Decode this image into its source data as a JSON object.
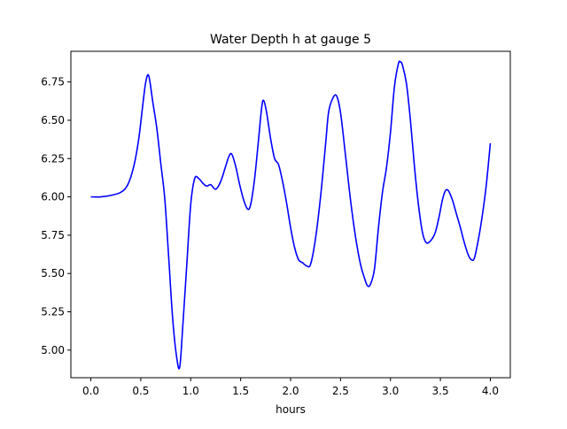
{
  "chart_data": {
    "type": "line",
    "title": "Water Depth h at gauge 5",
    "xlabel": "hours",
    "ylabel": "",
    "xlim": [
      -0.2,
      4.2
    ],
    "ylim": [
      4.82,
      6.95
    ],
    "grid": false,
    "legend": "none",
    "xticks": [
      0.0,
      0.5,
      1.0,
      1.5,
      2.0,
      2.5,
      3.0,
      3.5,
      4.0
    ],
    "xtick_labels": [
      "0.0",
      "0.5",
      "1.0",
      "1.5",
      "2.0",
      "2.5",
      "3.0",
      "3.5",
      "4.0"
    ],
    "yticks": [
      5.0,
      5.25,
      5.5,
      5.75,
      6.0,
      6.25,
      6.5,
      6.75
    ],
    "ytick_labels": [
      "5.00",
      "5.25",
      "5.50",
      "5.75",
      "6.00",
      "6.25",
      "6.50",
      "6.75"
    ],
    "series": [
      {
        "color": "#0000ff",
        "x": [
          0.0,
          0.1,
          0.2,
          0.3,
          0.37,
          0.43,
          0.48,
          0.52,
          0.55,
          0.58,
          0.62,
          0.66,
          0.7,
          0.74,
          0.78,
          0.82,
          0.86,
          0.89,
          0.92,
          0.96,
          1.0,
          1.04,
          1.08,
          1.12,
          1.16,
          1.2,
          1.25,
          1.3,
          1.35,
          1.38,
          1.41,
          1.45,
          1.49,
          1.53,
          1.57,
          1.6,
          1.64,
          1.68,
          1.71,
          1.73,
          1.76,
          1.8,
          1.84,
          1.88,
          1.92,
          1.96,
          2.0,
          2.04,
          2.08,
          2.12,
          2.16,
          2.2,
          2.25,
          2.3,
          2.35,
          2.38,
          2.42,
          2.46,
          2.5,
          2.55,
          2.6,
          2.65,
          2.7,
          2.74,
          2.77,
          2.8,
          2.84,
          2.88,
          2.92,
          2.96,
          3.0,
          3.04,
          3.08,
          3.1,
          3.12,
          3.16,
          3.2,
          3.24,
          3.28,
          3.32,
          3.36,
          3.41,
          3.45,
          3.49,
          3.52,
          3.55,
          3.58,
          3.62,
          3.66,
          3.7,
          3.74,
          3.78,
          3.81,
          3.84,
          3.88,
          3.92,
          3.96,
          4.0
        ],
        "y": [
          6.0,
          6.0,
          6.01,
          6.03,
          6.08,
          6.2,
          6.38,
          6.6,
          6.75,
          6.79,
          6.62,
          6.45,
          6.22,
          5.99,
          5.6,
          5.2,
          4.95,
          4.89,
          5.15,
          5.55,
          5.95,
          6.12,
          6.12,
          6.09,
          6.07,
          6.08,
          6.05,
          6.1,
          6.2,
          6.26,
          6.28,
          6.2,
          6.08,
          5.98,
          5.92,
          5.95,
          6.12,
          6.38,
          6.58,
          6.63,
          6.55,
          6.38,
          6.25,
          6.21,
          6.1,
          5.96,
          5.8,
          5.67,
          5.59,
          5.57,
          5.55,
          5.56,
          5.73,
          6.0,
          6.34,
          6.55,
          6.64,
          6.66,
          6.55,
          6.27,
          5.98,
          5.74,
          5.56,
          5.47,
          5.42,
          5.43,
          5.53,
          5.8,
          6.03,
          6.19,
          6.42,
          6.72,
          6.87,
          6.88,
          6.86,
          6.74,
          6.5,
          6.2,
          5.95,
          5.77,
          5.7,
          5.72,
          5.77,
          5.88,
          5.98,
          6.04,
          6.04,
          5.98,
          5.89,
          5.8,
          5.7,
          5.62,
          5.59,
          5.6,
          5.72,
          5.88,
          6.08,
          6.35
        ]
      }
    ]
  }
}
